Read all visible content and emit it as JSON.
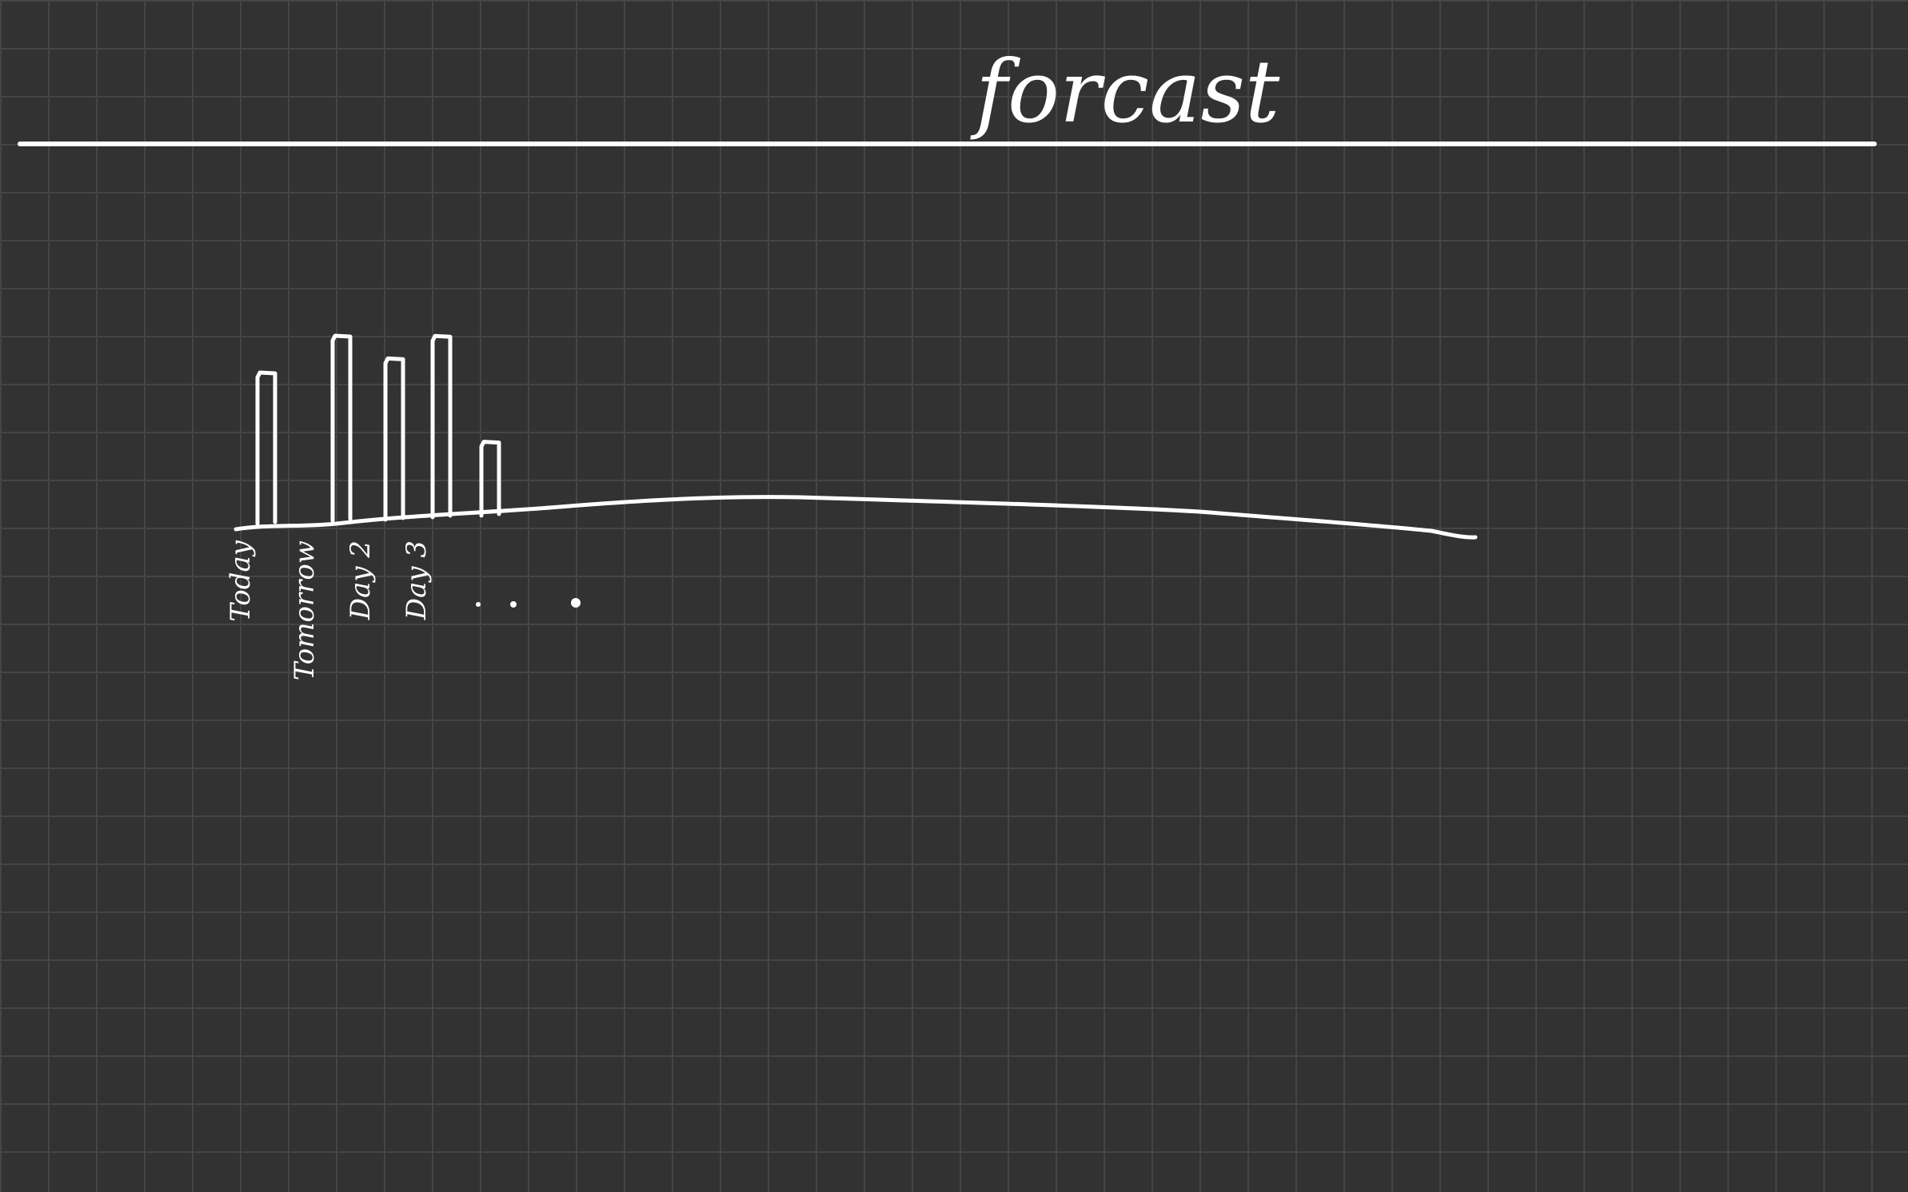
{
  "title": "forcast",
  "chart_data": {
    "type": "bar",
    "categories": [
      "Today",
      "Tomorrow",
      "Day 2",
      "Day 3",
      "",
      "...."
    ],
    "values": [
      4.5,
      5.5,
      4.8,
      5.4,
      2.2,
      null
    ],
    "ellipsis": "...."
  },
  "colors": {
    "background": "#323232",
    "grid": "#454545",
    "ink": "#ffffff"
  }
}
